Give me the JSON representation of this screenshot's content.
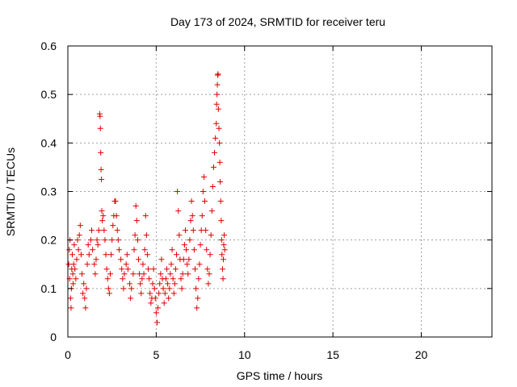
{
  "chart_data": {
    "type": "scatter",
    "title": "Day 173 of 2024, SRMTID for receiver teru",
    "xlabel": "GPS time / hours",
    "ylabel": "SRMTID / TECUs",
    "xlim": [
      0,
      24
    ],
    "ylim": [
      0,
      0.6
    ],
    "x_ticks": [
      0,
      5,
      10,
      15,
      20
    ],
    "x_tick_labels": [
      "0",
      "5",
      "10",
      "15",
      "20"
    ],
    "y_ticks": [
      0,
      0.1,
      0.2,
      0.3,
      0.4,
      0.5,
      0.6
    ],
    "y_tick_labels": [
      "0",
      "0.1",
      "0.2",
      "0.3",
      "0.4",
      "0.5",
      "0.6"
    ],
    "grid": true,
    "marker": "+",
    "marker_color": "#e00000",
    "series": [
      {
        "name": "SRMTID",
        "points": [
          [
            0.05,
            0.15
          ],
          [
            0.08,
            0.18
          ],
          [
            0.1,
            0.12
          ],
          [
            0.12,
            0.2
          ],
          [
            0.15,
            0.08
          ],
          [
            0.18,
            0.06
          ],
          [
            0.2,
            0.1
          ],
          [
            0.22,
            0.14
          ],
          [
            0.25,
            0.17
          ],
          [
            0.28,
            0.13
          ],
          [
            0.3,
            0.11
          ],
          [
            0.33,
            0.15
          ],
          [
            0.36,
            0.19
          ],
          [
            0.4,
            0.14
          ],
          [
            0.45,
            0.12
          ],
          [
            0.5,
            0.16
          ],
          [
            0.55,
            0.2
          ],
          [
            0.6,
            0.18
          ],
          [
            0.65,
            0.21
          ],
          [
            0.7,
            0.23
          ],
          [
            0.75,
            0.17
          ],
          [
            0.8,
            0.13
          ],
          [
            0.85,
            0.09
          ],
          [
            0.9,
            0.11
          ],
          [
            0.95,
            0.08
          ],
          [
            1.0,
            0.06
          ],
          [
            1.05,
            0.1
          ],
          [
            1.1,
            0.15
          ],
          [
            1.15,
            0.19
          ],
          [
            1.2,
            0.17
          ],
          [
            1.3,
            0.2
          ],
          [
            1.35,
            0.22
          ],
          [
            1.4,
            0.18
          ],
          [
            1.5,
            0.15
          ],
          [
            1.55,
            0.13
          ],
          [
            1.6,
            0.16
          ],
          [
            1.65,
            0.2
          ],
          [
            1.7,
            0.19
          ],
          [
            1.75,
            0.22
          ],
          [
            1.8,
            0.46
          ],
          [
            1.82,
            0.455
          ],
          [
            1.84,
            0.43
          ],
          [
            1.86,
            0.38
          ],
          [
            1.88,
            0.345
          ],
          [
            1.9,
            0.325
          ],
          [
            1.92,
            0.26
          ],
          [
            1.95,
            0.24
          ],
          [
            2.0,
            0.25
          ],
          [
            2.05,
            0.22
          ],
          [
            2.1,
            0.2
          ],
          [
            2.15,
            0.17
          ],
          [
            2.2,
            0.14
          ],
          [
            2.25,
            0.12
          ],
          [
            2.3,
            0.1
          ],
          [
            2.35,
            0.09
          ],
          [
            2.4,
            0.13
          ],
          [
            2.45,
            0.17
          ],
          [
            2.5,
            0.2
          ],
          [
            2.55,
            0.23
          ],
          [
            2.6,
            0.25
          ],
          [
            2.65,
            0.28
          ],
          [
            2.7,
            0.28
          ],
          [
            2.75,
            0.25
          ],
          [
            2.8,
            0.22
          ],
          [
            2.85,
            0.2
          ],
          [
            2.9,
            0.18
          ],
          [
            3.0,
            0.16
          ],
          [
            3.05,
            0.14
          ],
          [
            3.1,
            0.12
          ],
          [
            3.15,
            0.1
          ],
          [
            3.2,
            0.13
          ],
          [
            3.3,
            0.15
          ],
          [
            3.35,
            0.17
          ],
          [
            3.4,
            0.14
          ],
          [
            3.5,
            0.11
          ],
          [
            3.55,
            0.08
          ],
          [
            3.6,
            0.1
          ],
          [
            3.7,
            0.13
          ],
          [
            3.75,
            0.18
          ],
          [
            3.8,
            0.21
          ],
          [
            3.85,
            0.27
          ],
          [
            3.9,
            0.24
          ],
          [
            3.95,
            0.2
          ],
          [
            4.0,
            0.16
          ],
          [
            4.05,
            0.13
          ],
          [
            4.1,
            0.11
          ],
          [
            4.15,
            0.09
          ],
          [
            4.2,
            0.12
          ],
          [
            4.25,
            0.15
          ],
          [
            4.3,
            0.13
          ],
          [
            4.35,
            0.18
          ],
          [
            4.4,
            0.25
          ],
          [
            4.45,
            0.21
          ],
          [
            4.5,
            0.17
          ],
          [
            4.55,
            0.14
          ],
          [
            4.6,
            0.12
          ],
          [
            4.65,
            0.09
          ],
          [
            4.7,
            0.07
          ],
          [
            4.75,
            0.08
          ],
          [
            4.8,
            0.11
          ],
          [
            4.85,
            0.14
          ],
          [
            4.9,
            0.1
          ],
          [
            4.95,
            0.08
          ],
          [
            5.0,
            0.05
          ],
          [
            5.05,
            0.03
          ],
          [
            5.1,
            0.06
          ],
          [
            5.15,
            0.09
          ],
          [
            5.2,
            0.11
          ],
          [
            5.25,
            0.13
          ],
          [
            5.3,
            0.16
          ],
          [
            5.35,
            0.12
          ],
          [
            5.4,
            0.1
          ],
          [
            5.45,
            0.07
          ],
          [
            5.5,
            0.09
          ],
          [
            5.55,
            0.12
          ],
          [
            5.6,
            0.14
          ],
          [
            5.65,
            0.11
          ],
          [
            5.7,
            0.08
          ],
          [
            5.75,
            0.1
          ],
          [
            5.8,
            0.13
          ],
          [
            5.85,
            0.15
          ],
          [
            5.9,
            0.18
          ],
          [
            5.95,
            0.12
          ],
          [
            6.0,
            0.09
          ],
          [
            6.05,
            0.11
          ],
          [
            6.1,
            0.14
          ],
          [
            6.15,
            0.17
          ],
          [
            6.2,
            0.3
          ],
          [
            6.25,
            0.26
          ],
          [
            6.3,
            0.21
          ],
          [
            6.35,
            0.16
          ],
          [
            6.4,
            0.12
          ],
          [
            6.45,
            0.1
          ],
          [
            6.5,
            0.13
          ],
          [
            6.55,
            0.16
          ],
          [
            6.6,
            0.19
          ],
          [
            6.65,
            0.22
          ],
          [
            6.7,
            0.18
          ],
          [
            6.75,
            0.15
          ],
          [
            6.8,
            0.13
          ],
          [
            6.85,
            0.16
          ],
          [
            6.9,
            0.2
          ],
          [
            6.95,
            0.24
          ],
          [
            7.0,
            0.28
          ],
          [
            7.05,
            0.25
          ],
          [
            7.1,
            0.22
          ],
          [
            7.15,
            0.18
          ],
          [
            7.2,
            0.14
          ],
          [
            7.25,
            0.1
          ],
          [
            7.3,
            0.06
          ],
          [
            7.35,
            0.08
          ],
          [
            7.4,
            0.12
          ],
          [
            7.45,
            0.15
          ],
          [
            7.5,
            0.19
          ],
          [
            7.55,
            0.22
          ],
          [
            7.6,
            0.25
          ],
          [
            7.65,
            0.3
          ],
          [
            7.7,
            0.33
          ],
          [
            7.75,
            0.28
          ],
          [
            7.8,
            0.22
          ],
          [
            7.85,
            0.18
          ],
          [
            7.9,
            0.14
          ],
          [
            7.95,
            0.11
          ],
          [
            8.0,
            0.13
          ],
          [
            8.05,
            0.17
          ],
          [
            8.1,
            0.21
          ],
          [
            8.15,
            0.26
          ],
          [
            8.2,
            0.31
          ],
          [
            8.25,
            0.35
          ],
          [
            8.3,
            0.38
          ],
          [
            8.35,
            0.41
          ],
          [
            8.4,
            0.44
          ],
          [
            8.42,
            0.48
          ],
          [
            8.44,
            0.5
          ],
          [
            8.46,
            0.52
          ],
          [
            8.48,
            0.54
          ],
          [
            8.5,
            0.542
          ],
          [
            8.52,
            0.47
          ],
          [
            8.55,
            0.43
          ],
          [
            8.58,
            0.4
          ],
          [
            8.6,
            0.36
          ],
          [
            8.62,
            0.32
          ],
          [
            8.65,
            0.28
          ],
          [
            8.68,
            0.24
          ],
          [
            8.7,
            0.2
          ],
          [
            8.72,
            0.17
          ],
          [
            8.75,
            0.14
          ],
          [
            8.78,
            0.12
          ],
          [
            8.8,
            0.16
          ],
          [
            8.82,
            0.19
          ],
          [
            8.85,
            0.21
          ],
          [
            8.88,
            0.18
          ]
        ]
      }
    ]
  }
}
